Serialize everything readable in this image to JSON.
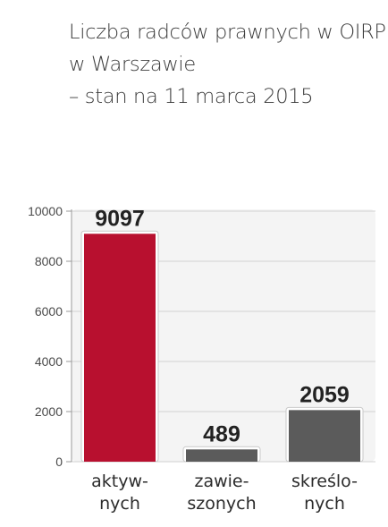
{
  "title": {
    "line1": "Liczba radców prawnych w OIRP",
    "line2": "w Warszawie",
    "line3": "– stan na 11 marca 2015"
  },
  "chart_data": {
    "type": "bar",
    "title": "Liczba radców prawnych w OIRP w Warszawie – stan na 11 marca 2015",
    "categories": [
      [
        "aktyw-",
        "nych"
      ],
      [
        "zawie-",
        "szonych"
      ],
      [
        "skreślo-",
        "nych"
      ]
    ],
    "values": [
      9097,
      489,
      2059
    ],
    "value_labels": [
      "9097",
      "489",
      "2059"
    ],
    "colors": [
      "#b8102f",
      "#5b5b5b",
      "#5b5b5b"
    ],
    "ylim": [
      0,
      10000
    ],
    "yticks": [
      0,
      2000,
      4000,
      6000,
      8000,
      10000
    ],
    "ytick_labels": [
      "0",
      "2000",
      "4000",
      "6000",
      "8000",
      "10000"
    ],
    "grid": true,
    "xlabel": "",
    "ylabel": ""
  }
}
